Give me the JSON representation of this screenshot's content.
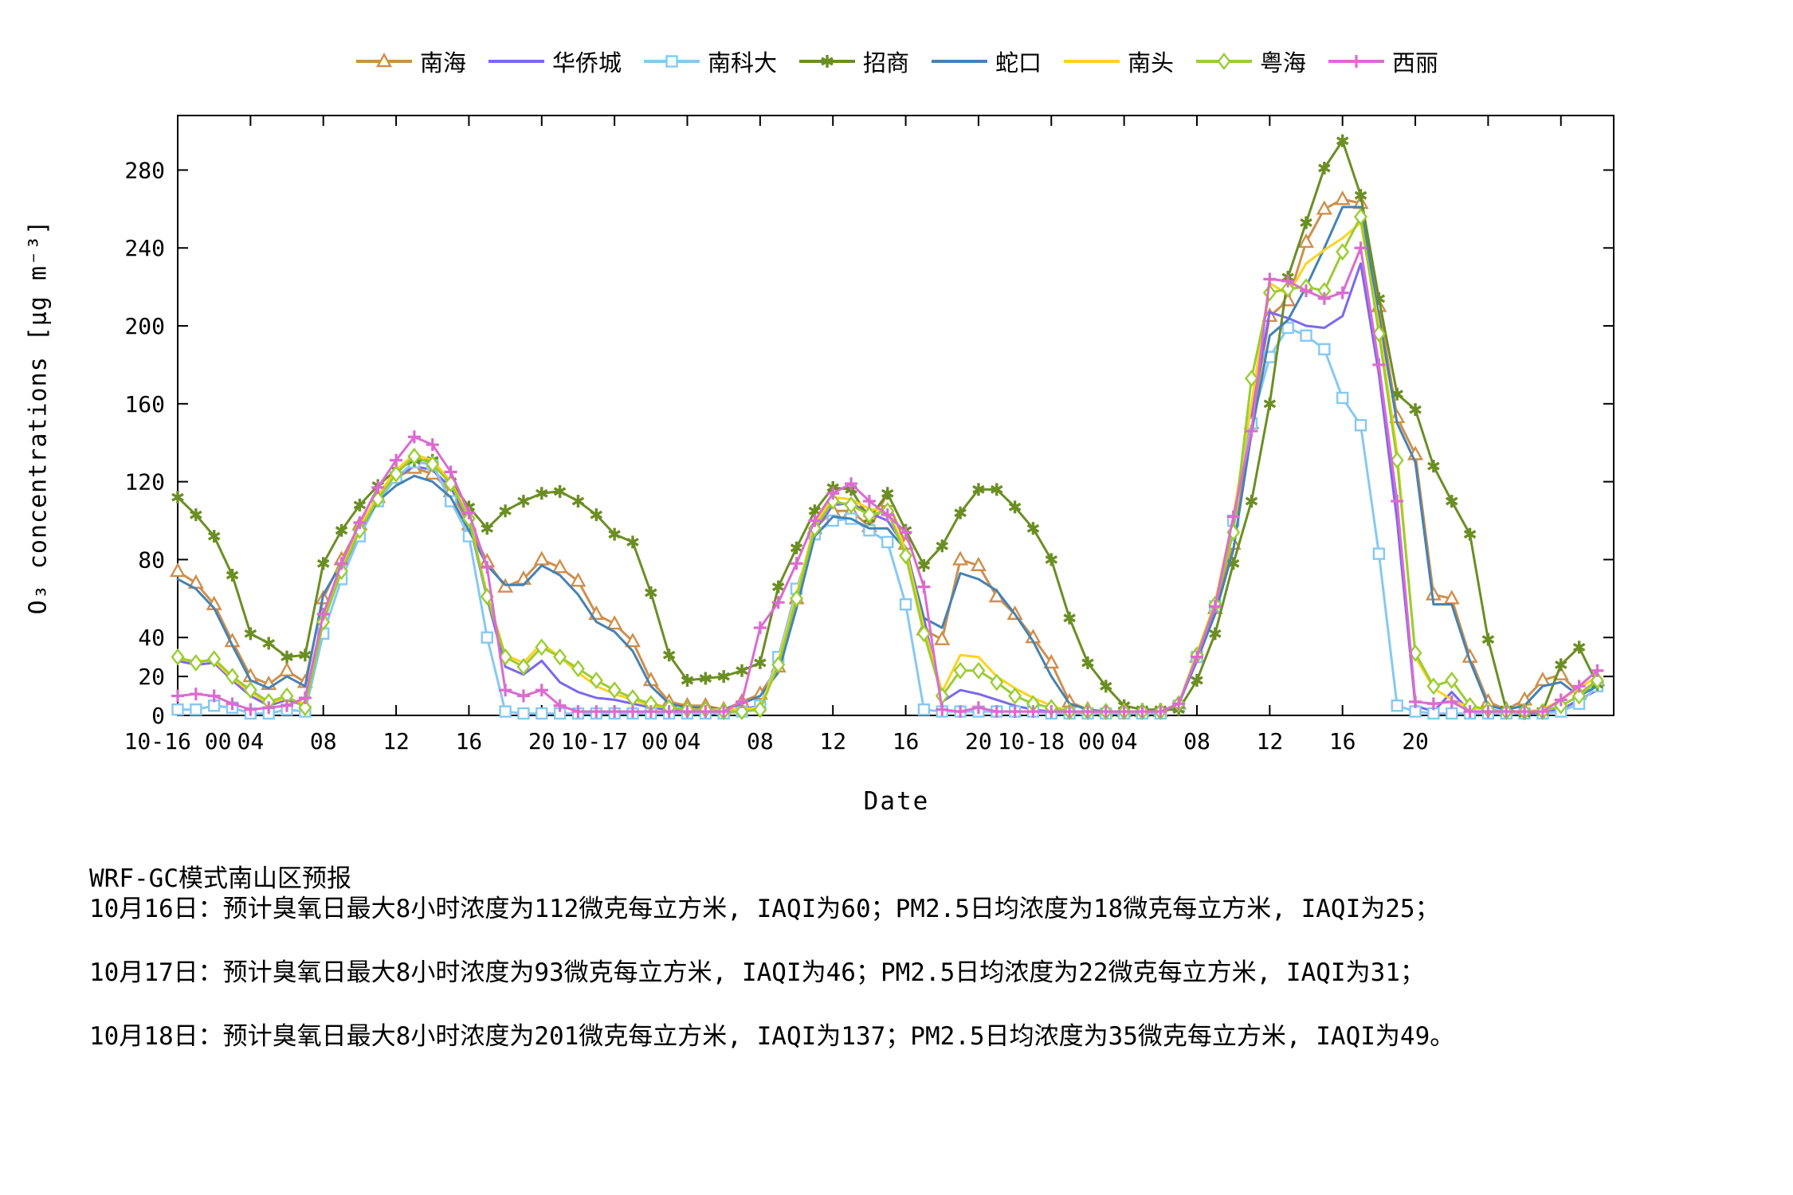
{
  "chart_data": {
    "type": "line",
    "title": "",
    "xlabel": "Date",
    "ylabel": "O₃ concentrations [μg m⁻³]",
    "ylim": [
      0,
      308
    ],
    "y_ticks": [
      0,
      20,
      40,
      80,
      120,
      160,
      200,
      240,
      280
    ],
    "x_hours_total": 78,
    "x_ticks": [
      {
        "h": 0,
        "label": "10-16 00"
      },
      {
        "h": 4,
        "label": "04"
      },
      {
        "h": 8,
        "label": "08"
      },
      {
        "h": 12,
        "label": "12"
      },
      {
        "h": 16,
        "label": "16"
      },
      {
        "h": 20,
        "label": "20"
      },
      {
        "h": 24,
        "label": "10-17 00"
      },
      {
        "h": 28,
        "label": "04"
      },
      {
        "h": 32,
        "label": "08"
      },
      {
        "h": 36,
        "label": "12"
      },
      {
        "h": 40,
        "label": "16"
      },
      {
        "h": 44,
        "label": "20"
      },
      {
        "h": 48,
        "label": "10-18 00"
      },
      {
        "h": 52,
        "label": "04"
      },
      {
        "h": 56,
        "label": "08"
      },
      {
        "h": 60,
        "label": "12"
      },
      {
        "h": 64,
        "label": "16"
      },
      {
        "h": 68,
        "label": "20"
      },
      {
        "h": 72,
        "label": ""
      },
      {
        "h": 76,
        "label": ""
      }
    ],
    "legend_position": "top-center",
    "grid": false,
    "series": [
      {
        "name": "南海",
        "color": "#CE8F4B",
        "marker": "triangle",
        "values": [
          74,
          68,
          57,
          38,
          20,
          16,
          23,
          17,
          60,
          80,
          98,
          112,
          122,
          127,
          124,
          115,
          98,
          79,
          66,
          70,
          80,
          76,
          69,
          52,
          47,
          38,
          18,
          7,
          5,
          5,
          3,
          7,
          11,
          25,
          60,
          96,
          105,
          105,
          97,
          110,
          88,
          44,
          39,
          80,
          77,
          61,
          52,
          40,
          27,
          7,
          3,
          2,
          2,
          2,
          2,
          6,
          30,
          55,
          88,
          150,
          205,
          213,
          243,
          260,
          265,
          263,
          210,
          153,
          134,
          62,
          60,
          30,
          7,
          3,
          8,
          18,
          21,
          11,
          18
        ]
      },
      {
        "name": "华侨城",
        "color": "#7B68EE",
        "marker": "none",
        "values": [
          28,
          26,
          27,
          18,
          10,
          5,
          8,
          5,
          48,
          74,
          94,
          110,
          122,
          128,
          126,
          117,
          100,
          60,
          25,
          21,
          28,
          17,
          12,
          9,
          8,
          6,
          4,
          3,
          3,
          3,
          3,
          3,
          5,
          25,
          60,
          95,
          108,
          109,
          104,
          100,
          86,
          50,
          7,
          13,
          11,
          8,
          5,
          3,
          2,
          2,
          2,
          2,
          2,
          2,
          2,
          6,
          30,
          56,
          100,
          155,
          207,
          204,
          200,
          199,
          205,
          232,
          175,
          100,
          5,
          2,
          12,
          2,
          2,
          2,
          2,
          2,
          3,
          8,
          13
        ]
      },
      {
        "name": "南科大",
        "color": "#85C9F2",
        "marker": "square",
        "values": [
          3,
          3,
          5,
          4,
          1,
          1,
          3,
          2,
          42,
          70,
          92,
          110,
          122,
          130,
          129,
          110,
          92,
          40,
          2,
          1,
          1,
          1,
          1,
          1,
          1,
          1,
          1,
          1,
          1,
          1,
          1,
          2,
          5,
          30,
          65,
          93,
          100,
          101,
          95,
          89,
          57,
          3,
          2,
          2,
          2,
          2,
          2,
          2,
          1,
          1,
          1,
          1,
          1,
          1,
          1,
          5,
          30,
          56,
          100,
          150,
          184,
          199,
          195,
          188,
          163,
          149,
          83,
          5,
          2,
          1,
          1,
          1,
          1,
          1,
          1,
          1,
          2,
          6,
          15
        ]
      },
      {
        "name": "招商",
        "color": "#6B8E23",
        "marker": "asterisk",
        "values": [
          112,
          103,
          92,
          72,
          42,
          37,
          30,
          31,
          78,
          95,
          108,
          118,
          126,
          131,
          131,
          120,
          107,
          96,
          105,
          110,
          114,
          115,
          110,
          103,
          93,
          89,
          63,
          31,
          18,
          19,
          20,
          23,
          27,
          66,
          86,
          105,
          117,
          116,
          101,
          114,
          95,
          77,
          87,
          104,
          116,
          116,
          107,
          96,
          80,
          50,
          27,
          15,
          5,
          3,
          3,
          3,
          18,
          42,
          78,
          110,
          160,
          225,
          253,
          281,
          295,
          267,
          214,
          165,
          157,
          128,
          110,
          93,
          39,
          3,
          1,
          2,
          26,
          35,
          16
        ]
      },
      {
        "name": "蛇口",
        "color": "#4682B4",
        "marker": "none",
        "values": [
          70,
          65,
          55,
          36,
          18,
          14,
          20,
          15,
          62,
          78,
          95,
          110,
          118,
          123,
          120,
          112,
          95,
          77,
          67,
          67,
          77,
          72,
          62,
          48,
          43,
          33,
          15,
          6,
          4,
          4,
          3,
          6,
          10,
          22,
          55,
          92,
          102,
          101,
          96,
          96,
          85,
          50,
          45,
          73,
          70,
          64,
          52,
          38,
          20,
          6,
          3,
          2,
          2,
          2,
          2,
          6,
          28,
          52,
          85,
          145,
          195,
          203,
          220,
          240,
          261,
          261,
          205,
          150,
          130,
          57,
          57,
          28,
          5,
          3,
          5,
          15,
          17,
          10,
          15
        ]
      },
      {
        "name": "南头",
        "color": "#FFD21F",
        "marker": "none",
        "values": [
          29,
          28,
          28,
          19,
          12,
          6,
          9,
          6,
          50,
          76,
          97,
          113,
          126,
          134,
          131,
          120,
          102,
          62,
          31,
          27,
          37,
          30,
          22,
          15,
          11,
          8,
          5,
          4,
          3,
          3,
          3,
          3,
          4,
          28,
          62,
          98,
          112,
          111,
          106,
          105,
          85,
          45,
          12,
          31,
          30,
          20,
          14,
          9,
          5,
          2,
          2,
          2,
          2,
          2,
          2,
          6,
          32,
          58,
          102,
          160,
          222,
          216,
          232,
          239,
          245,
          253,
          200,
          135,
          30,
          14,
          8,
          4,
          3,
          2,
          2,
          3,
          8,
          14,
          20
        ]
      },
      {
        "name": "粤海",
        "color": "#9ACD32",
        "marker": "diamond",
        "values": [
          30,
          27,
          29,
          20,
          13,
          7,
          10,
          4,
          48,
          74,
          95,
          111,
          124,
          133,
          129,
          119,
          101,
          61,
          30,
          25,
          35,
          30,
          24,
          18,
          13,
          9,
          6,
          4,
          3,
          3,
          2,
          2,
          3,
          26,
          60,
          96,
          110,
          108,
          103,
          105,
          82,
          42,
          10,
          23,
          23,
          17,
          10,
          6,
          4,
          2,
          2,
          2,
          2,
          2,
          2,
          6,
          31,
          57,
          94,
          173,
          217,
          219,
          220,
          218,
          238,
          256,
          196,
          131,
          32,
          15,
          18,
          5,
          3,
          2,
          2,
          2,
          5,
          10,
          18
        ]
      },
      {
        "name": "西丽",
        "color": "#DC6BD0",
        "marker": "plus",
        "values": [
          10,
          11,
          10,
          6,
          3,
          4,
          5,
          9,
          52,
          78,
          99,
          117,
          131,
          143,
          139,
          125,
          104,
          76,
          13,
          10,
          13,
          5,
          2,
          2,
          2,
          2,
          2,
          2,
          2,
          2,
          2,
          7,
          45,
          58,
          78,
          100,
          114,
          119,
          110,
          103,
          94,
          66,
          3,
          2,
          4,
          2,
          2,
          2,
          2,
          2,
          2,
          2,
          2,
          2,
          2,
          6,
          30,
          56,
          102,
          146,
          224,
          223,
          218,
          214,
          217,
          240,
          180,
          110,
          7,
          6,
          7,
          2,
          2,
          2,
          2,
          2,
          8,
          15,
          23
        ]
      }
    ]
  },
  "axis": {
    "xlabel": "Date",
    "ylabel": "O₃ concentrations [μg m⁻³]"
  },
  "footer": {
    "line1": "WRF-GC模式南山区预报",
    "line2": "10月16日：预计臭氧日最大8小时浓度为112微克每立方米, IAQI为60；PM2.5日均浓度为18微克每立方米, IAQI为25；",
    "line3": "10月17日：预计臭氧日最大8小时浓度为93微克每立方米, IAQI为46；PM2.5日均浓度为22微克每立方米, IAQI为31；",
    "line4": "10月18日：预计臭氧日最大8小时浓度为201微克每立方米, IAQI为137；PM2.5日均浓度为35微克每立方米, IAQI为49。"
  }
}
